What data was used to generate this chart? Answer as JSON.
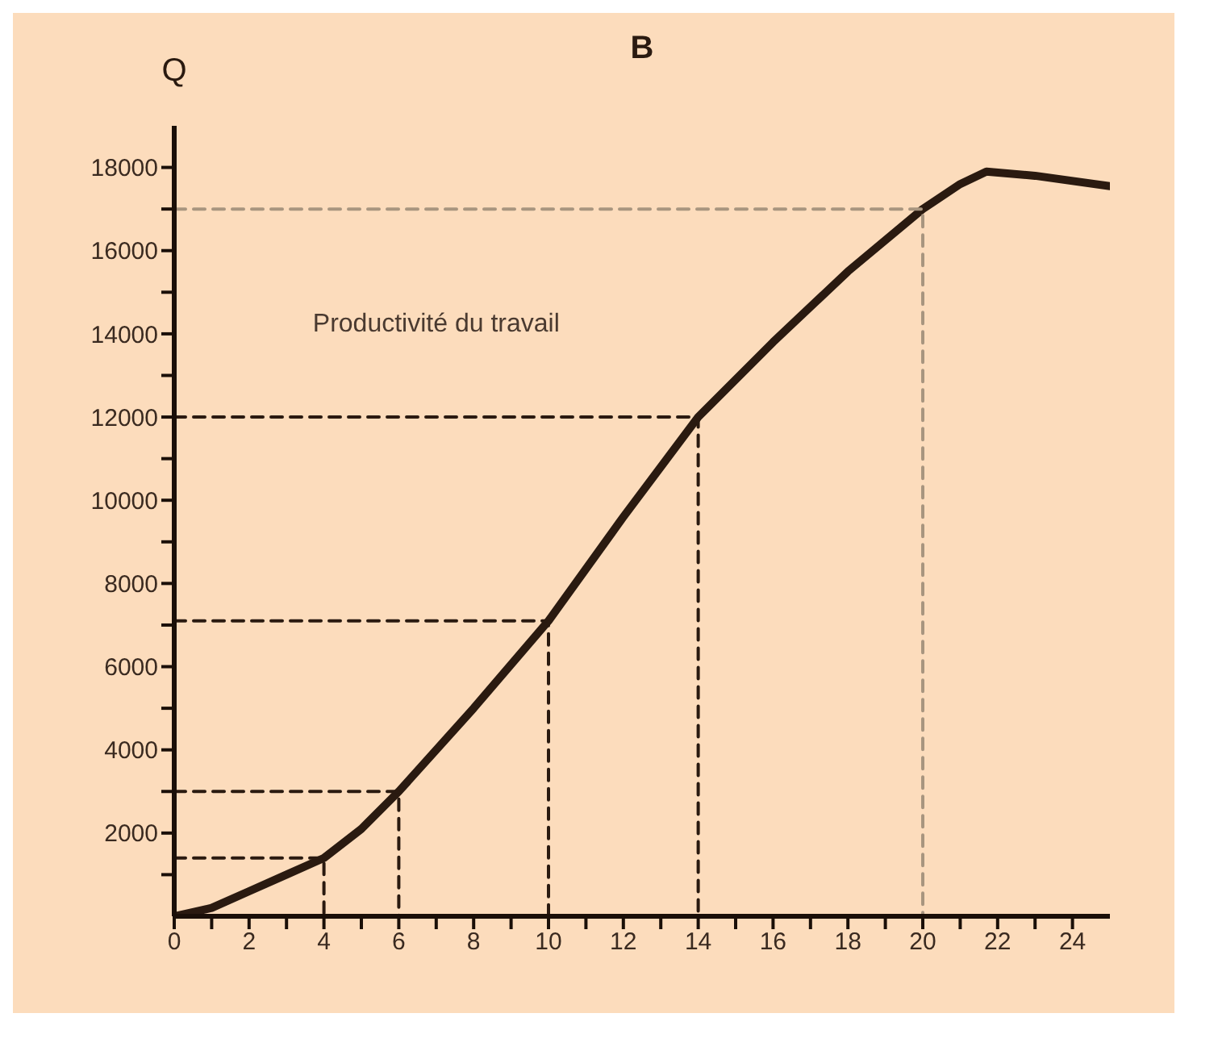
{
  "chart_data": {
    "type": "line",
    "title": "B",
    "xlabel": null,
    "ylabel": "Q",
    "annotations": [
      "Productivité du travail"
    ],
    "xlim": [
      0,
      25
    ],
    "xticks": [
      0,
      {
        "value": 1,
        "label": null
      },
      2,
      {
        "value": 3,
        "label": null
      },
      4,
      {
        "value": 5,
        "label": null
      },
      6,
      {
        "value": 7,
        "label": null
      },
      8,
      {
        "value": 9,
        "label": null
      },
      10,
      {
        "value": 11,
        "label": null
      },
      12,
      {
        "value": 13,
        "label": null
      },
      14,
      {
        "value": 15,
        "label": null
      },
      16,
      {
        "value": 17,
        "label": null
      },
      18,
      {
        "value": 19,
        "label": null
      },
      20,
      {
        "value": 21,
        "label": null
      },
      22,
      {
        "value": 23,
        "label": null
      },
      24
    ],
    "ylim": [
      0,
      19000
    ],
    "yticks": [
      {
        "value": 1000,
        "label": null
      },
      2000,
      {
        "value": 3000,
        "label": null
      },
      {
        "value": 4000,
        "label": "4000"
      },
      {
        "value": 5000,
        "label": null
      },
      {
        "value": 6000,
        "label": "6000"
      },
      {
        "value": 7000,
        "label": null
      },
      {
        "value": 8000,
        "label": "8000"
      },
      {
        "value": 9000,
        "label": null
      },
      {
        "value": 10000,
        "label": "10000"
      },
      {
        "value": 11000,
        "label": null
      },
      {
        "value": 12000,
        "label": "12000"
      },
      {
        "value": 13000,
        "label": null
      },
      {
        "value": 14000,
        "label": "14000"
      },
      {
        "value": 15000,
        "label": null
      },
      {
        "value": 16000,
        "label": "16000"
      },
      {
        "value": 17000,
        "label": null
      },
      {
        "value": 18000,
        "label": "18000"
      }
    ],
    "marker": "none",
    "series": [
      {
        "color": "#2a1a10",
        "line_style": "solid",
        "x": [
          0,
          1,
          2,
          3,
          4,
          5,
          6,
          8,
          10,
          12,
          14,
          16,
          18,
          20,
          21,
          21.7,
          23,
          25
        ],
        "values": [
          0,
          200,
          600,
          1000,
          1400,
          2100,
          3000,
          5000,
          7100,
          9600,
          12000,
          13800,
          15500,
          17000,
          17600,
          17900,
          17800,
          17550
        ]
      },
      {
        "color": "#2a1a10",
        "line_style": "dashed",
        "x": [
          0,
          4,
          4
        ],
        "values": [
          1400,
          1400,
          0
        ]
      },
      {
        "color": "#2a1a10",
        "line_style": "dashed",
        "x": [
          0,
          6,
          6
        ],
        "values": [
          3000,
          3000,
          0
        ]
      },
      {
        "color": "#2a1a10",
        "line_style": "dashed",
        "x": [
          0,
          10,
          10
        ],
        "values": [
          7100,
          7100,
          0
        ]
      },
      {
        "color": "#2a1a10",
        "line_style": "dashed",
        "x": [
          0,
          14,
          14
        ],
        "values": [
          12000,
          12000,
          0
        ]
      },
      {
        "color": "#a8957f",
        "line_style": "dashed",
        "x": [
          0,
          20,
          20
        ],
        "values": [
          17000,
          17000,
          0
        ]
      }
    ]
  }
}
